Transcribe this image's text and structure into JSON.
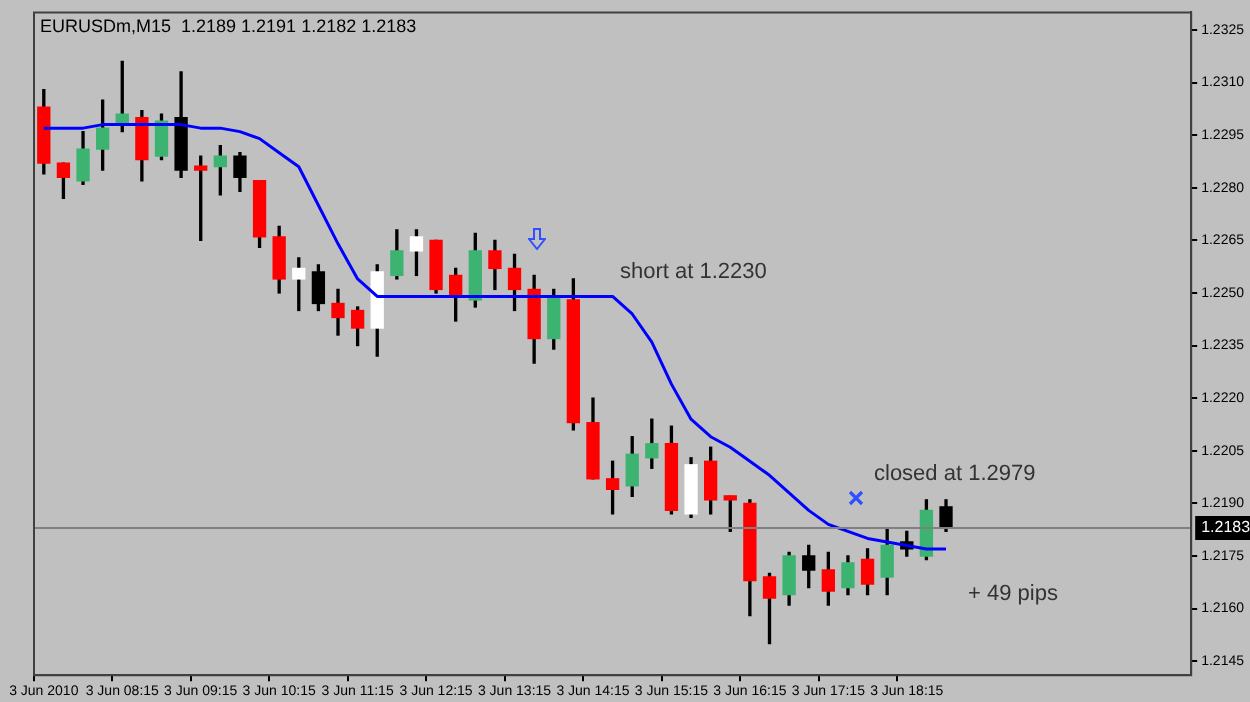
{
  "chart_data": {
    "type": "candlestick",
    "title": "EURUSDm,M15  1.2189 1.2191 1.2182 1.2183",
    "categories": [
      "3 Jun 2010",
      null,
      null,
      null,
      "3 Jun 08:15",
      null,
      null,
      null,
      "3 Jun 09:15",
      null,
      null,
      null,
      "3 Jun 10:15",
      null,
      null,
      null,
      "3 Jun 11:15",
      null,
      null,
      null,
      "3 Jun 12:15",
      null,
      null,
      null,
      "3 Jun 13:15",
      null,
      null,
      null,
      "3 Jun 14:15",
      null,
      null,
      null,
      "3 Jun 15:15",
      null,
      null,
      null,
      "3 Jun 16:15",
      null,
      null,
      null,
      "3 Jun 17:15",
      null,
      null,
      null,
      "3 Jun 18:15",
      null,
      null,
      null,
      null,
      null,
      null,
      null,
      null,
      null,
      null,
      null,
      null,
      null,
      null
    ],
    "ohlc": [
      [
        1.2303,
        1.2308,
        1.2284,
        1.2287
      ],
      [
        1.2287,
        1.2287,
        1.2277,
        1.2283
      ],
      [
        1.2282,
        1.2296,
        1.2281,
        1.2291
      ],
      [
        1.2291,
        1.2305,
        1.2285,
        1.2297
      ],
      [
        1.2298,
        1.2316,
        1.2296,
        1.2301
      ],
      [
        1.23,
        1.2302,
        1.2282,
        1.2288
      ],
      [
        1.2289,
        1.2301,
        1.2288,
        1.2299
      ],
      [
        1.23,
        1.2313,
        1.2283,
        1.2285
      ],
      [
        1.2286,
        1.2289,
        1.2265,
        1.2285
      ],
      [
        1.2286,
        1.2292,
        1.2278,
        1.2289
      ],
      [
        1.2289,
        1.229,
        1.2279,
        1.2283
      ],
      [
        1.2282,
        1.2282,
        1.2263,
        1.2266
      ],
      [
        1.2266,
        1.2269,
        1.225,
        1.2254
      ],
      [
        1.2254,
        1.226,
        1.2245,
        1.2257
      ],
      [
        1.2256,
        1.2258,
        1.2245,
        1.2247
      ],
      [
        1.2247,
        1.2251,
        1.2238,
        1.2243
      ],
      [
        1.2245,
        1.2246,
        1.2235,
        1.224
      ],
      [
        1.224,
        1.2258,
        1.2232,
        1.2256
      ],
      [
        1.2255,
        1.2268,
        1.2254,
        1.2262
      ],
      [
        1.2262,
        1.2268,
        1.2255,
        1.2266
      ],
      [
        1.2265,
        1.2265,
        1.225,
        1.2251
      ],
      [
        1.2255,
        1.2257,
        1.2242,
        1.2249
      ],
      [
        1.2248,
        1.2267,
        1.2246,
        1.2262
      ],
      [
        1.2262,
        1.2265,
        1.2251,
        1.2257
      ],
      [
        1.2257,
        1.2261,
        1.2245,
        1.2251
      ],
      [
        1.2251,
        1.2255,
        1.223,
        1.2237
      ],
      [
        1.2237,
        1.2251,
        1.2234,
        1.2249
      ],
      [
        1.2248,
        1.2254,
        1.2211,
        1.2213
      ],
      [
        1.2213,
        1.222,
        1.2197,
        1.2197
      ],
      [
        1.2197,
        1.2202,
        1.2187,
        1.2194
      ],
      [
        1.2195,
        1.2209,
        1.2192,
        1.2204
      ],
      [
        1.2203,
        1.2214,
        1.22,
        1.2207
      ],
      [
        1.2207,
        1.2212,
        1.2187,
        1.2188
      ],
      [
        1.2187,
        1.2203,
        1.2186,
        1.2201
      ],
      [
        1.2202,
        1.2206,
        1.2187,
        1.2191
      ],
      [
        1.2192,
        1.2192,
        1.2182,
        1.2191
      ],
      [
        1.219,
        1.2191,
        1.2158,
        1.2168
      ],
      [
        1.2169,
        1.217,
        1.215,
        1.2163
      ],
      [
        1.2164,
        1.2176,
        1.2161,
        1.2175
      ],
      [
        1.2175,
        1.2178,
        1.2166,
        1.2171
      ],
      [
        1.2171,
        1.2176,
        1.2161,
        1.2165
      ],
      [
        1.2166,
        1.2175,
        1.2164,
        1.2173
      ],
      [
        1.2174,
        1.2177,
        1.2164,
        1.2167
      ],
      [
        1.2169,
        1.2183,
        1.2164,
        1.2178
      ],
      [
        1.2179,
        1.2182,
        1.2175,
        1.2177
      ],
      [
        1.2175,
        1.2191,
        1.2174,
        1.2188
      ],
      [
        1.2189,
        1.2191,
        1.2182,
        1.2183
      ],
      null,
      null,
      null,
      null,
      null,
      null,
      null,
      null,
      null,
      null,
      null,
      null
    ],
    "colors": [
      "#ff0000",
      "#ff0000",
      "#3cb371",
      "#3cb371",
      "#3cb371",
      "#ff0000",
      "#3cb371",
      "#000000",
      "#ff0000",
      "#3cb371",
      "#000000",
      "#ff0000",
      "#ff0000",
      "#ffffff",
      "#000000",
      "#ff0000",
      "#ff0000",
      "#ffffff",
      "#3cb371",
      "#ffffff",
      "#ff0000",
      "#ff0000",
      "#3cb371",
      "#ff0000",
      "#ff0000",
      "#ff0000",
      "#3cb371",
      "#ff0000",
      "#ff0000",
      "#ff0000",
      "#3cb371",
      "#3cb371",
      "#ff0000",
      "#ffffff",
      "#ff0000",
      "#ff0000",
      "#ff0000",
      "#ff0000",
      "#3cb371",
      "#000000",
      "#ff0000",
      "#3cb371",
      "#ff0000",
      "#3cb371",
      "#000000",
      "#3cb371",
      "#000000",
      null,
      null,
      null,
      null,
      null,
      null,
      null,
      null,
      null,
      null,
      null,
      null
    ],
    "series": [
      {
        "type": "line",
        "color": "#0000ff",
        "values": [
          1.2297,
          1.2297,
          1.2297,
          1.2298,
          1.2298,
          1.2298,
          1.2298,
          1.2298,
          1.2297,
          1.2297,
          1.2296,
          1.2294,
          1.229,
          1.2286,
          1.2275,
          1.2264,
          1.2254,
          1.2249,
          1.2249,
          1.2249,
          1.2249,
          1.2249,
          1.2249,
          1.2249,
          1.2249,
          1.2249,
          1.2249,
          1.2249,
          1.2249,
          1.2249,
          1.2244,
          1.2236,
          1.2224,
          1.2214,
          1.2209,
          1.2206,
          1.2202,
          1.2198,
          1.2193,
          1.2188,
          1.2184,
          1.2182,
          1.218,
          1.2179,
          1.2178,
          1.2177,
          1.2177,
          null,
          null,
          null,
          null,
          null,
          null,
          null,
          null,
          null,
          null,
          null,
          null
        ]
      }
    ],
    "ylim": [
      1.2141,
      1.233
    ],
    "yticks": [
      1.2325,
      {
        "value": 1.231,
        "label": "1.2310"
      },
      1.2295,
      {
        "value": 1.228,
        "label": "1.2280"
      },
      1.2265,
      {
        "value": 1.225,
        "label": "1.2250"
      },
      1.2235,
      {
        "value": 1.222,
        "label": "1.2220"
      },
      1.2205,
      {
        "value": 1.219,
        "label": "1.2190"
      },
      1.2175,
      {
        "value": 1.216,
        "label": "1.2160"
      },
      1.2145
    ],
    "ref_lines": [
      {
        "axis": "y",
        "value": 1.2183,
        "label": "1.2183",
        "color": "#808080"
      }
    ],
    "annotations": [
      "short at 1.2230",
      "closed at 1.2979",
      "+ 49 pips"
    ],
    "legend": false
  }
}
